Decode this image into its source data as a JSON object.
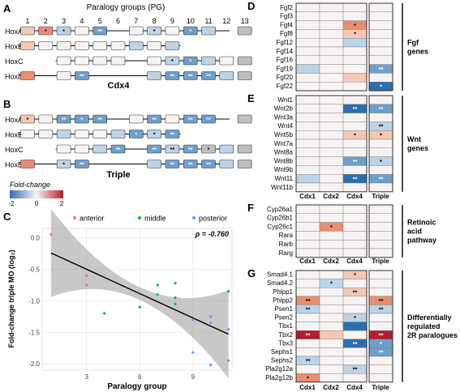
{
  "colors": {
    "neg_strong": "#2c6fae",
    "neg_mid": "#6f9fcd",
    "neg_light": "#bcd3e8",
    "neutral": "#f7f3f3",
    "pos_light": "#f4c8b4",
    "pos_mid": "#e98d70",
    "pos_strong": "#b71c2c",
    "absent": "#bfbfbf",
    "anterior": "#f8766d",
    "middle": "#00ba38",
    "posterior": "#619cff"
  },
  "panelA": {
    "label": "A",
    "title": "Paralogy groups (PG)",
    "pg_numbers": [
      "1",
      "2",
      "3",
      "4",
      "5",
      "6",
      "7",
      "8",
      "9",
      "10",
      "11",
      "12",
      "13"
    ],
    "caption": "Cdx4",
    "rows": [
      {
        "name": "HoxA",
        "cells": [
          {
            "pg": 1,
            "v": 1,
            "s": ""
          },
          {
            "pg": 2,
            "v": 2,
            "s": "*"
          },
          {
            "pg": 3,
            "v": -1,
            "s": "*"
          },
          {
            "pg": 4,
            "v": 0,
            "s": ""
          },
          {
            "pg": 5,
            "v": -2,
            "s": "**"
          },
          {
            "pg": 7,
            "v": 0,
            "s": ""
          },
          {
            "pg": 8,
            "v": -1,
            "s": "*"
          },
          {
            "pg": 9,
            "v": 0,
            "s": ""
          },
          {
            "pg": 10,
            "v": -2,
            "s": "*"
          },
          {
            "pg": 11,
            "v": -1,
            "s": ""
          },
          {
            "pg": 13,
            "v": 99,
            "s": ""
          }
        ]
      },
      {
        "name": "HoxB",
        "cells": [
          {
            "pg": 1,
            "v": 1,
            "s": ""
          },
          {
            "pg": 2,
            "v": 0,
            "s": ""
          },
          {
            "pg": 3,
            "v": 0,
            "s": ""
          },
          {
            "pg": 4,
            "v": 0,
            "s": ""
          },
          {
            "pg": 5,
            "v": 0,
            "s": ""
          },
          {
            "pg": 6,
            "v": 0,
            "s": ""
          },
          {
            "pg": 7,
            "v": -1,
            "s": ""
          },
          {
            "pg": 8,
            "v": 0,
            "s": ""
          },
          {
            "pg": 9,
            "v": -1,
            "s": ""
          }
        ]
      },
      {
        "name": "HoxC",
        "cells": [
          {
            "pg": 3,
            "v": 0,
            "s": ""
          },
          {
            "pg": 4,
            "v": 0,
            "s": ""
          },
          {
            "pg": 5,
            "v": 0,
            "s": ""
          },
          {
            "pg": 6,
            "v": 0,
            "s": ""
          },
          {
            "pg": 8,
            "v": 0,
            "s": ""
          },
          {
            "pg": 9,
            "v": -1,
            "s": "*"
          },
          {
            "pg": 10,
            "v": -2,
            "s": "*"
          },
          {
            "pg": 11,
            "v": -1,
            "s": ""
          },
          {
            "pg": 12,
            "v": 0,
            "s": ""
          },
          {
            "pg": 13,
            "v": 99,
            "s": ""
          }
        ]
      },
      {
        "name": "HoxD",
        "cells": [
          {
            "pg": 1,
            "v": 2,
            "s": ""
          },
          {
            "pg": 3,
            "v": 0,
            "s": ""
          },
          {
            "pg": 4,
            "v": -2,
            "s": "**"
          },
          {
            "pg": 8,
            "v": -1,
            "s": ""
          },
          {
            "pg": 9,
            "v": -2,
            "s": "**"
          },
          {
            "pg": 10,
            "v": -2,
            "s": "**"
          },
          {
            "pg": 11,
            "v": -2,
            "s": "**"
          },
          {
            "pg": 12,
            "v": -1,
            "s": ""
          },
          {
            "pg": 13,
            "v": 99,
            "s": ""
          }
        ]
      }
    ]
  },
  "panelB": {
    "label": "B",
    "caption": "Triple",
    "rows": [
      {
        "name": "HoxA",
        "cells": [
          {
            "pg": 1,
            "v": 1,
            "s": "*"
          },
          {
            "pg": 2,
            "v": 0,
            "s": ""
          },
          {
            "pg": 3,
            "v": -2,
            "s": "**"
          },
          {
            "pg": 4,
            "v": -2,
            "s": "*"
          },
          {
            "pg": 5,
            "v": -2,
            "s": "**"
          },
          {
            "pg": 7,
            "v": 0,
            "s": ""
          },
          {
            "pg": 8,
            "v": -2,
            "s": "**"
          },
          {
            "pg": 9,
            "v": 0,
            "s": ""
          },
          {
            "pg": 10,
            "v": -2,
            "s": "**"
          },
          {
            "pg": 11,
            "v": -2,
            "s": "**"
          },
          {
            "pg": 13,
            "v": 99,
            "s": ""
          }
        ]
      },
      {
        "name": "HoxB",
        "cells": [
          {
            "pg": 1,
            "v": 0,
            "s": ""
          },
          {
            "pg": 2,
            "v": 0,
            "s": ""
          },
          {
            "pg": 3,
            "v": -1,
            "s": ""
          },
          {
            "pg": 4,
            "v": 0,
            "s": ""
          },
          {
            "pg": 5,
            "v": 0,
            "s": ""
          },
          {
            "pg": 6,
            "v": -1,
            "s": ""
          },
          {
            "pg": 7,
            "v": -2,
            "s": "*"
          },
          {
            "pg": 8,
            "v": -1,
            "s": "*"
          },
          {
            "pg": 9,
            "v": -2,
            "s": "**"
          }
        ]
      },
      {
        "name": "HoxC",
        "cells": [
          {
            "pg": 3,
            "v": 0,
            "s": ""
          },
          {
            "pg": 4,
            "v": 0,
            "s": ""
          },
          {
            "pg": 5,
            "v": -1,
            "s": ""
          },
          {
            "pg": 6,
            "v": -2,
            "s": "**"
          },
          {
            "pg": 8,
            "v": -2,
            "s": "**"
          },
          {
            "pg": 9,
            "v": -1,
            "s": "**"
          },
          {
            "pg": 10,
            "v": -2,
            "s": "**"
          },
          {
            "pg": 11,
            "v": 99,
            "s": "*"
          },
          {
            "pg": 12,
            "v": -1,
            "s": ""
          },
          {
            "pg": 13,
            "v": 99,
            "s": ""
          }
        ]
      },
      {
        "name": "HoxD",
        "cells": [
          {
            "pg": 1,
            "v": 2,
            "s": ""
          },
          {
            "pg": 3,
            "v": -1,
            "s": "*"
          },
          {
            "pg": 4,
            "v": -2,
            "s": "**"
          },
          {
            "pg": 8,
            "v": -1,
            "s": ""
          },
          {
            "pg": 9,
            "v": -2,
            "s": "**"
          },
          {
            "pg": 10,
            "v": -2,
            "s": "**"
          },
          {
            "pg": 11,
            "v": -2,
            "s": "**"
          },
          {
            "pg": 12,
            "v": -1,
            "s": ""
          },
          {
            "pg": 13,
            "v": 99,
            "s": ""
          }
        ]
      }
    ]
  },
  "legend": {
    "title": "Fold-change",
    "ticks": [
      "-2",
      "0",
      "2"
    ]
  },
  "panelC": {
    "label": "C",
    "rho": "ρ = -0.760",
    "legend": [
      "anterior",
      "middle",
      "posterior"
    ],
    "chart_data": {
      "type": "scatter",
      "xlabel": "Paralogy group",
      "ylabel": "Fold-change triple MO (log₂)",
      "xlim": [
        0.5,
        11.2
      ],
      "ylim": [
        -2.1,
        0.15
      ],
      "xticks": [
        "3",
        "6",
        "9"
      ],
      "yticks": [
        "0.0",
        "-0.5",
        "-1.0",
        "-1.5",
        "-2.0"
      ],
      "trend": {
        "x": [
          1,
          11
        ],
        "y": [
          -0.24,
          -1.53
        ]
      },
      "series": [
        {
          "name": "anterior",
          "points": [
            [
              1,
              0.05
            ],
            [
              3,
              -0.6
            ],
            [
              3,
              -0.75
            ]
          ]
        },
        {
          "name": "middle",
          "points": [
            [
              4,
              -1.2
            ],
            [
              6,
              -1.1
            ],
            [
              7,
              -0.75
            ],
            [
              7,
              -0.9
            ],
            [
              8,
              -0.72
            ],
            [
              8,
              -1.05
            ],
            [
              8,
              -0.95
            ],
            [
              11,
              -0.85
            ]
          ]
        },
        {
          "name": "posterior",
          "points": [
            [
              9,
              -1.3
            ],
            [
              9,
              -1.82
            ],
            [
              10,
              -1.25
            ],
            [
              10,
              -2.02
            ],
            [
              10,
              -1.35
            ],
            [
              11,
              -1.45
            ],
            [
              11,
              -1.95
            ]
          ]
        }
      ]
    }
  },
  "heat_columns": [
    "Cdx1",
    "Cdx2",
    "Cdx4",
    "Triple"
  ],
  "panelD": {
    "label": "D",
    "group": [
      "Fgf",
      "genes"
    ],
    "genes": [
      {
        "name": "Fgf2",
        "v": [
          0,
          0,
          0,
          0
        ],
        "s": [
          "",
          "",
          "",
          ""
        ]
      },
      {
        "name": "Fgf3",
        "v": [
          0,
          0,
          0,
          0
        ],
        "s": [
          "",
          "",
          "",
          ""
        ]
      },
      {
        "name": "Fgf4",
        "v": [
          0,
          0,
          2,
          0
        ],
        "s": [
          "",
          "",
          "*",
          ""
        ]
      },
      {
        "name": "Fgf8",
        "v": [
          0,
          0,
          1,
          0
        ],
        "s": [
          "",
          "",
          "*",
          ""
        ]
      },
      {
        "name": "Fgf12",
        "v": [
          0,
          0,
          -1,
          0
        ],
        "s": [
          "",
          "",
          "",
          ""
        ]
      },
      {
        "name": "Fgf14",
        "v": [
          0,
          0,
          0,
          0
        ],
        "s": [
          "",
          "",
          "",
          ""
        ]
      },
      {
        "name": "Fgf16",
        "v": [
          0,
          0,
          0,
          0
        ],
        "s": [
          "",
          "",
          "",
          ""
        ]
      },
      {
        "name": "Fgf19",
        "v": [
          -1,
          0,
          0,
          -2
        ],
        "s": [
          "",
          "",
          "",
          "**"
        ]
      },
      {
        "name": "Fgf20",
        "v": [
          0,
          0,
          1,
          0
        ],
        "s": [
          "",
          "",
          "",
          ""
        ]
      },
      {
        "name": "Fgf22",
        "v": [
          0,
          0,
          0,
          -3
        ],
        "s": [
          "",
          "",
          "",
          "*"
        ]
      }
    ]
  },
  "panelE": {
    "label": "E",
    "group": [
      "Wnt",
      "genes"
    ],
    "genes": [
      {
        "name": "Wnt1",
        "v": [
          0,
          0,
          0,
          0
        ],
        "s": [
          "",
          "",
          "",
          ""
        ]
      },
      {
        "name": "Wnt2b",
        "v": [
          0,
          0,
          -3,
          -2
        ],
        "s": [
          "",
          "",
          "**",
          "**"
        ]
      },
      {
        "name": "Wnt3a",
        "v": [
          0,
          0,
          0,
          0
        ],
        "s": [
          "",
          "",
          "",
          ""
        ]
      },
      {
        "name": "Wnt4",
        "v": [
          0,
          0,
          0,
          -1
        ],
        "s": [
          "",
          "",
          "",
          "**"
        ]
      },
      {
        "name": "Wnt5b",
        "v": [
          0,
          0,
          1,
          1
        ],
        "s": [
          "",
          "",
          "*",
          "*"
        ]
      },
      {
        "name": "Wnt7a",
        "v": [
          0,
          0,
          0,
          0
        ],
        "s": [
          "",
          "",
          "",
          ""
        ]
      },
      {
        "name": "Wnt8a",
        "v": [
          0,
          0,
          0,
          0
        ],
        "s": [
          "",
          "",
          "",
          ""
        ]
      },
      {
        "name": "Wnt8b",
        "v": [
          0,
          0,
          -2,
          -1
        ],
        "s": [
          "",
          "",
          "**",
          "*"
        ]
      },
      {
        "name": "Wnt9b",
        "v": [
          0,
          0,
          0,
          0
        ],
        "s": [
          "",
          "",
          "",
          ""
        ]
      },
      {
        "name": "Wnt11",
        "v": [
          -1,
          0,
          -3,
          -2
        ],
        "s": [
          "",
          "",
          "**",
          "**"
        ]
      },
      {
        "name": "Wnt11b",
        "v": [
          0,
          0,
          0,
          0
        ],
        "s": [
          "",
          "",
          "",
          ""
        ]
      }
    ]
  },
  "panelF": {
    "label": "F",
    "group": [
      "Retinoic",
      "acid",
      "pathway"
    ],
    "genes": [
      {
        "name": "Cyp26a1",
        "v": [
          0,
          0,
          0,
          0
        ],
        "s": [
          "",
          "",
          "",
          ""
        ]
      },
      {
        "name": "Cyp26b1",
        "v": [
          0,
          0,
          0,
          0
        ],
        "s": [
          "",
          "",
          "",
          ""
        ]
      },
      {
        "name": "Cyp26c1",
        "v": [
          0,
          2,
          0,
          0
        ],
        "s": [
          "",
          "*",
          "",
          ""
        ]
      },
      {
        "name": "Rara",
        "v": [
          0,
          0,
          0,
          0
        ],
        "s": [
          "",
          "",
          "",
          ""
        ]
      },
      {
        "name": "Rarb",
        "v": [
          0,
          0,
          0,
          0
        ],
        "s": [
          "",
          "",
          "",
          ""
        ]
      },
      {
        "name": "Rarg",
        "v": [
          0,
          0,
          0,
          0
        ],
        "s": [
          "",
          "",
          "",
          ""
        ]
      }
    ]
  },
  "panelG": {
    "label": "G",
    "group": [
      "Differentially",
      "regulated",
      "2R paralogues"
    ],
    "genes": [
      {
        "name": "Smad4.1",
        "v": [
          0,
          0,
          1,
          0
        ],
        "s": [
          "",
          "",
          "*",
          ""
        ]
      },
      {
        "name": "Smad4.2",
        "v": [
          0,
          -1,
          0,
          0
        ],
        "s": [
          "",
          "*",
          "",
          ""
        ]
      },
      {
        "name": "Phlpp1",
        "v": [
          0,
          0,
          1,
          0
        ],
        "s": [
          "",
          "",
          "**",
          ""
        ]
      },
      {
        "name": "Phlpp2",
        "v": [
          2,
          0,
          0,
          2
        ],
        "s": [
          "**",
          "",
          "",
          "**"
        ]
      },
      {
        "name": "Psen1",
        "v": [
          -1,
          0,
          0,
          -1
        ],
        "s": [
          "**",
          "",
          "",
          "**"
        ]
      },
      {
        "name": "Psen2",
        "v": [
          0,
          0,
          -1,
          0
        ],
        "s": [
          "",
          "",
          "*",
          ""
        ]
      },
      {
        "name": "Tbx1",
        "v": [
          0,
          0,
          -3,
          0
        ],
        "s": [
          "",
          "",
          "",
          ""
        ]
      },
      {
        "name": "Tbx2",
        "v": [
          3,
          1,
          0,
          3
        ],
        "s": [
          "**",
          "",
          "",
          "**"
        ]
      },
      {
        "name": "Tbx3",
        "v": [
          0,
          0,
          -3,
          -2
        ],
        "s": [
          "",
          "",
          "**",
          "*"
        ]
      },
      {
        "name": "Sephs1",
        "v": [
          0,
          0,
          0,
          -2
        ],
        "s": [
          "",
          "",
          "",
          "**"
        ]
      },
      {
        "name": "Sephs2",
        "v": [
          -1,
          0,
          0,
          0
        ],
        "s": [
          "**",
          "",
          "",
          ""
        ]
      },
      {
        "name": "Pla2g12a",
        "v": [
          0,
          0,
          -1,
          0
        ],
        "s": [
          "",
          "",
          "**",
          ""
        ]
      },
      {
        "name": "Pla2g12b",
        "v": [
          2,
          0,
          0,
          0
        ],
        "s": [
          "*",
          "",
          "",
          ""
        ]
      }
    ]
  }
}
